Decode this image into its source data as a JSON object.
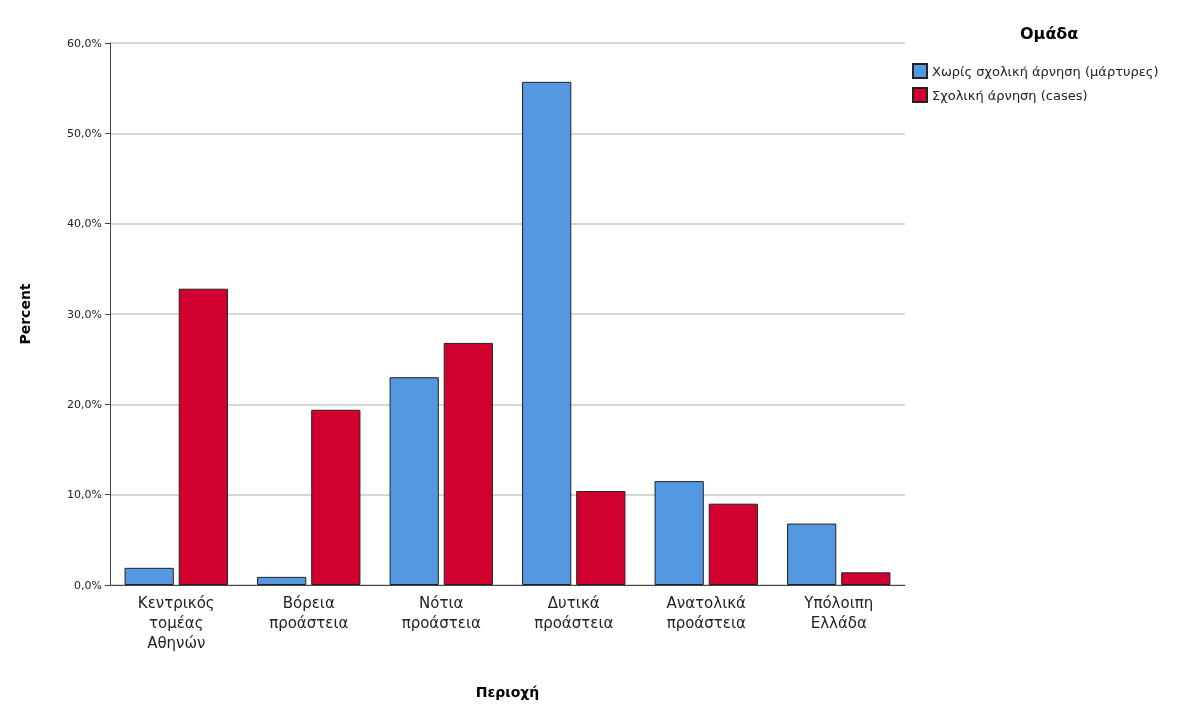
{
  "chart_data": {
    "type": "bar",
    "xlabel": "Περιοχή",
    "ylabel": "Percent",
    "legend_title": "Ομάδα",
    "categories": [
      "Κεντρικός τομέας Αθηνών",
      "Βόρεια προάστεια",
      "Νότια προάστεια",
      "Δυτικά προάστεια",
      "Ανατολικά προάστεια",
      "Υπόλοιπη Ελλάδα"
    ],
    "series": [
      {
        "name": "Χωρίς σχολική άρνηση (μάρτυρες)",
        "color": "#5598e2",
        "values": [
          1.9,
          0.9,
          23.0,
          55.7,
          11.5,
          6.8
        ]
      },
      {
        "name": "Σχολική άρνηση (cases)",
        "color": "#d2002e",
        "values": [
          32.8,
          19.4,
          26.8,
          10.4,
          9.0,
          1.4
        ]
      }
    ],
    "ylim": [
      0,
      60
    ],
    "yticks": [
      {
        "value": 0,
        "label": "0,0%"
      },
      {
        "value": 10,
        "label": "10,0%"
      },
      {
        "value": 20,
        "label": "20,0%"
      },
      {
        "value": 30,
        "label": "30,0%"
      },
      {
        "value": 40,
        "label": "40,0%"
      },
      {
        "value": 50,
        "label": "50,0%"
      },
      {
        "value": 60,
        "label": "60,0%"
      }
    ],
    "grid": "y",
    "legend": "top right"
  }
}
